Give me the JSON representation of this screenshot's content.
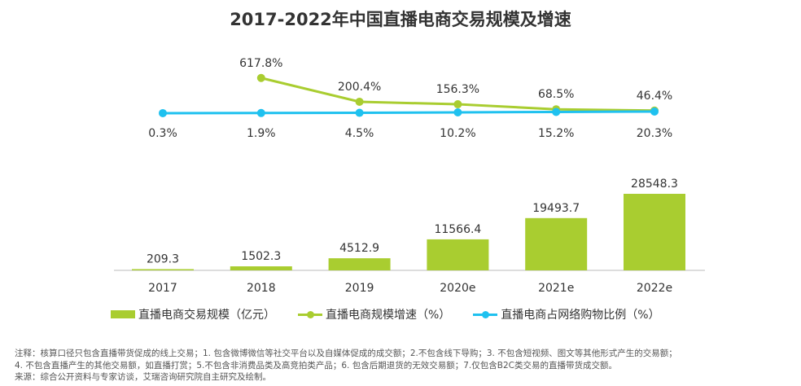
{
  "title": "2017-2022年中国直播电商交易规模及增速",
  "colors": {
    "bar": "#a9cd30",
    "growth": "#a9cd30",
    "share": "#1fc1ef"
  },
  "chart_data": {
    "type": "bar+line",
    "title": "2017-2022年中国直播电商交易规模及增速",
    "categories": [
      "2017",
      "2018",
      "2019",
      "2020e",
      "2021e",
      "2022e"
    ],
    "series": [
      {
        "name": "直播电商交易规模（亿元）",
        "type": "bar",
        "values": [
          209.3,
          1502.3,
          4512.9,
          11566.4,
          19493.7,
          28548.3
        ],
        "labels": [
          "209.3",
          "1502.3",
          "4512.9",
          "11566.4",
          "19493.7",
          "28548.3"
        ]
      },
      {
        "name": "直播电商规模增速（%）",
        "type": "line",
        "values": [
          null,
          617.8,
          200.4,
          156.3,
          68.5,
          46.4
        ],
        "labels": [
          "",
          "617.8%",
          "200.4%",
          "156.3%",
          "68.5%",
          "46.4%"
        ]
      },
      {
        "name": "直播电商占网络购物比例（%）",
        "type": "line",
        "values": [
          0.3,
          1.9,
          4.5,
          10.2,
          15.2,
          20.3
        ],
        "labels": [
          "0.3%",
          "1.9%",
          "4.5%",
          "10.2%",
          "15.2%",
          "20.3%"
        ]
      }
    ],
    "legend": "bottom"
  },
  "notes": [
    "注释：核算口径只包含直播带货促成的线上交易；1. 包含微博微信等社交平台以及自媒体促成的成交额；2.不包含线下导购；3. 不包含短视频、图文等其他形式产生的交易额；",
    " 4. 不包含直播产生的其他交易额，如直播打赏；5.不包含非消费品类及高竞拍类产品；6. 包含后期退货的无效交易额；7.仅包含B2C类交易的直播带货成交额。",
    "来源：综合公开资料与专家访谈，艾瑞咨询研究院自主研究及绘制。"
  ]
}
